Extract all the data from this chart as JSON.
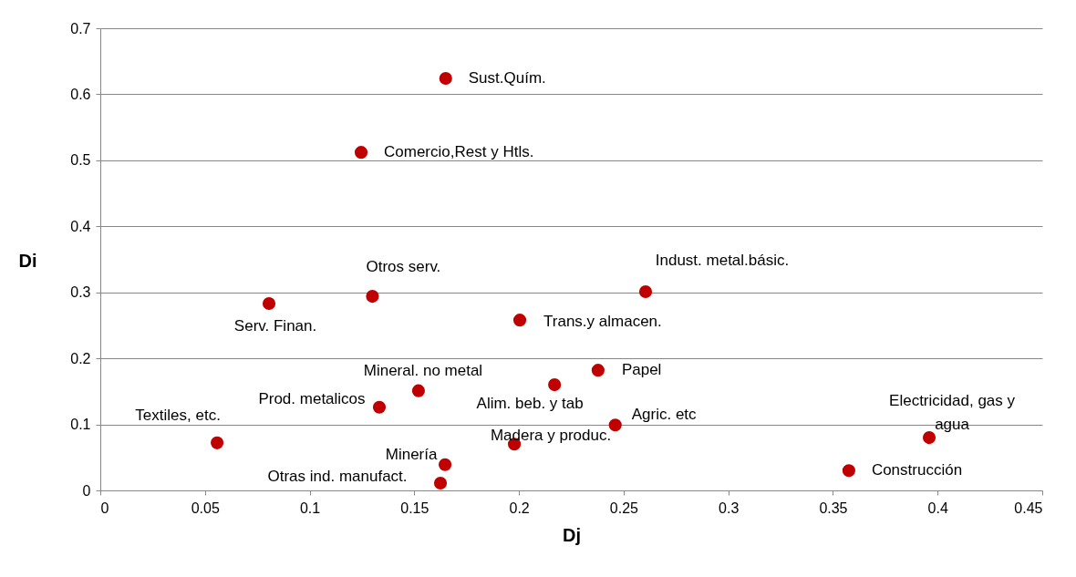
{
  "chart_data": {
    "type": "scatter",
    "xlabel": "Dj",
    "ylabel": "Di",
    "x": [
      0.165,
      0.1246,
      0.13,
      0.0806,
      0.2605,
      0.2004,
      0.2378,
      0.217,
      0.152,
      0.1333,
      0.246,
      0.0558,
      0.1978,
      0.396,
      0.1647,
      0.1625,
      0.3576
    ],
    "series": [
      {
        "color": "#c00000",
        "values": [
          0.624,
          0.512,
          0.294,
          0.283,
          0.301,
          0.258,
          0.182,
          0.16,
          0.151,
          0.126,
          0.099,
          0.072,
          0.07,
          0.08,
          0.039,
          0.011,
          0.03
        ]
      }
    ],
    "xlim": [
      0,
      0.45
    ],
    "xticks": [
      0,
      0.05,
      0.1,
      0.15,
      0.2,
      0.25,
      0.3,
      0.35,
      0.4,
      0.45
    ],
    "ylim": [
      0,
      0.7
    ],
    "yticks": [
      0,
      0.1,
      0.2,
      0.3,
      0.4,
      0.5,
      0.6,
      0.7
    ],
    "grid": "y",
    "marker": "circle",
    "annotations": [
      {
        "text": "Sust.Quím.",
        "x": 0.165,
        "y": 0.624
      },
      {
        "text": "Comercio,Rest y Htls.",
        "x": 0.1246,
        "y": 0.512
      },
      {
        "text": "Otros serv.",
        "x": 0.13,
        "y": 0.294
      },
      {
        "text": "Serv. Finan.",
        "x": 0.0806,
        "y": 0.283
      },
      {
        "text": "Indust. metal.básic.",
        "x": 0.2605,
        "y": 0.301
      },
      {
        "text": "Trans.y almacen.",
        "x": 0.2004,
        "y": 0.258
      },
      {
        "text": "Papel",
        "x": 0.2378,
        "y": 0.182
      },
      {
        "text": "Alim. beb. y tab",
        "x": 0.217,
        "y": 0.16
      },
      {
        "text": "Mineral. no metal",
        "x": 0.152,
        "y": 0.151
      },
      {
        "text": "Prod. metalicos",
        "x": 0.1333,
        "y": 0.126
      },
      {
        "text": "Agric. etc",
        "x": 0.246,
        "y": 0.099
      },
      {
        "text": "Textiles, etc.",
        "x": 0.0558,
        "y": 0.072
      },
      {
        "text": "Madera y produc.",
        "x": 0.1978,
        "y": 0.07
      },
      {
        "text": "Electricidad, gas y agua",
        "x": 0.396,
        "y": 0.08
      },
      {
        "text": "Minería",
        "x": 0.1647,
        "y": 0.039
      },
      {
        "text": "Otras ind. manufact.",
        "x": 0.1625,
        "y": 0.011
      },
      {
        "text": "Construcción",
        "x": 0.3576,
        "y": 0.03
      }
    ]
  }
}
